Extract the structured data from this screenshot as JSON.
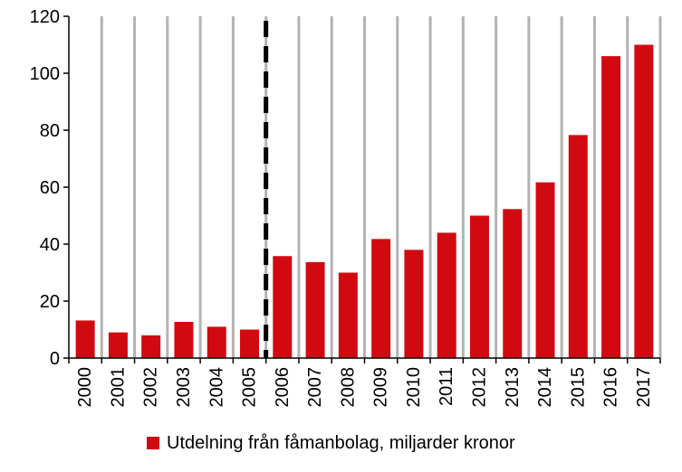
{
  "chart_data": {
    "type": "bar",
    "categories": [
      "2000",
      "2001",
      "2002",
      "2003",
      "2004",
      "2005",
      "2006",
      "2007",
      "2008",
      "2009",
      "2010",
      "2011",
      "2012",
      "2013",
      "2014",
      "2015",
      "2016",
      "2017"
    ],
    "series": [
      {
        "name": "Utdelning från fåmanbolag, miljarder kronor",
        "values": [
          13.2,
          9.0,
          8.0,
          12.7,
          11.0,
          10.0,
          35.8,
          33.7,
          30.0,
          41.8,
          38.0,
          44.0,
          50.0,
          52.3,
          61.7,
          78.3,
          106.0,
          110.0
        ],
        "color": "#d10a11"
      }
    ],
    "yticks": [
      0,
      20,
      40,
      60,
      80,
      100,
      120
    ],
    "ylim": [
      0,
      120
    ],
    "xlabel": "",
    "ylabel": "",
    "grid": "vertical",
    "gridColor": "#b3b3b3",
    "markerBetween": [
      "2005",
      "2006"
    ],
    "markerStyle": "dashed",
    "legend_position": "bottom"
  }
}
